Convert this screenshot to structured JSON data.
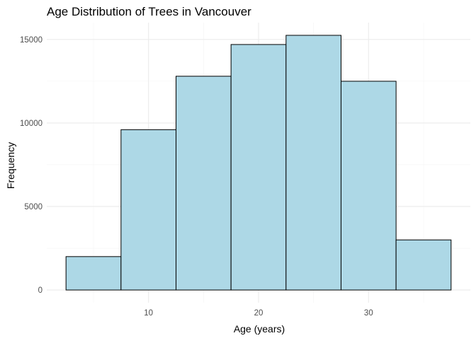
{
  "chart_data": {
    "type": "bar",
    "title": "Age Distribution of Trees in Vancouver",
    "xlabel": "Age (years)",
    "ylabel": "Frequency",
    "bins": [
      {
        "x0": 2.5,
        "x1": 7.5,
        "value": 2000
      },
      {
        "x0": 7.5,
        "x1": 12.5,
        "value": 9600
      },
      {
        "x0": 12.5,
        "x1": 17.5,
        "value": 12800
      },
      {
        "x0": 17.5,
        "x1": 22.5,
        "value": 14700
      },
      {
        "x0": 22.5,
        "x1": 27.5,
        "value": 15250
      },
      {
        "x0": 27.5,
        "x1": 32.5,
        "value": 12500
      },
      {
        "x0": 32.5,
        "x1": 37.5,
        "value": 3000
      }
    ],
    "xlim": [
      0.75,
      39.25
    ],
    "ylim": [
      -760,
      16010
    ],
    "x_ticks": [
      10,
      20,
      30
    ],
    "x_tick_labels": [
      "10",
      "20",
      "30"
    ],
    "x_minor_ticks": [
      5,
      15,
      25,
      35
    ],
    "y_ticks": [
      0,
      5000,
      10000,
      15000
    ],
    "y_tick_labels": [
      "0",
      "5000",
      "10000",
      "15000"
    ],
    "y_minor_ticks": [
      2500,
      7500,
      12500
    ],
    "grid": true,
    "legend": "none",
    "colors": {
      "bar_fill": "#add8e6",
      "bar_stroke": "#000000",
      "grid_major": "#ebebeb",
      "grid_minor": "#f5f5f5"
    }
  }
}
